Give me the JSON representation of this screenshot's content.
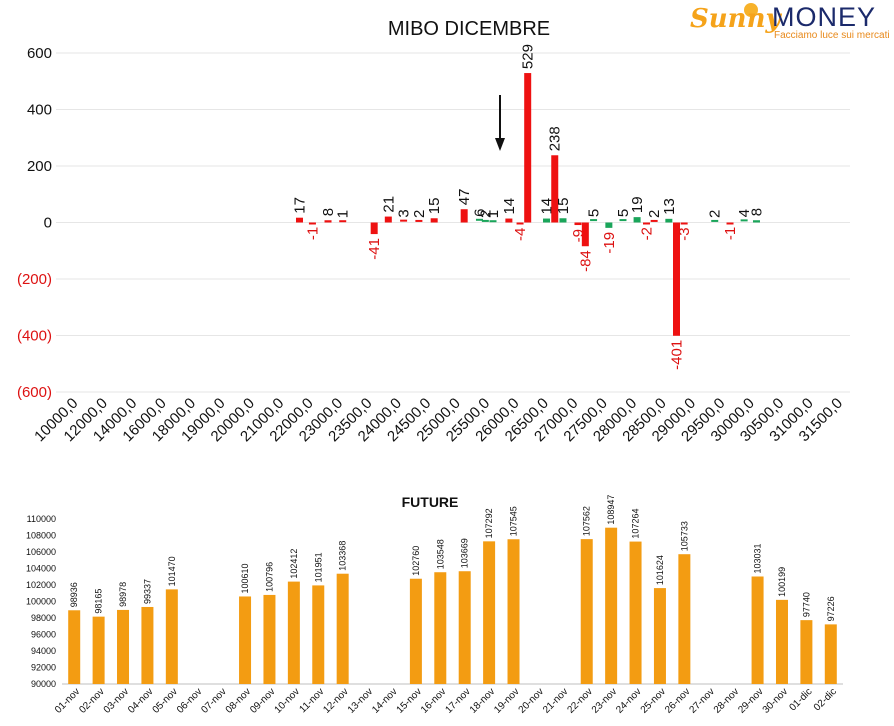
{
  "logo": {
    "brand_left": "Sunny",
    "brand_right": "MONEY",
    "tagline": "Facciamo luce sui mercati"
  },
  "colors": {
    "red": "#ee1111",
    "green": "#1aa55a",
    "orange": "#f39c12",
    "neg_label": "#dd1111"
  },
  "chart_data": [
    {
      "type": "bar",
      "title": "MIBO DICEMBRE",
      "ylim": [
        -600,
        600
      ],
      "y_ticks": [
        "600",
        "400",
        "200",
        "0",
        "(200)",
        "(400)",
        "(600)"
      ],
      "x_tick_labels": [
        "10000,0",
        "12000,0",
        "14000,0",
        "16000,0",
        "18000,0",
        "19000,0",
        "20000,0",
        "21000,0",
        "22000,0",
        "23000,0",
        "23500,0",
        "24000,0",
        "24500,0",
        "25000,0",
        "25500,0",
        "26000,0",
        "26500,0",
        "27000,0",
        "27500,0",
        "28000,0",
        "28500,0",
        "29000,0",
        "29500,0",
        "30000,0",
        "30500,0",
        "31000,0",
        "31500,0"
      ],
      "bars": [
        {
          "x": 8.28,
          "value": 17,
          "color": "red",
          "label": "17"
        },
        {
          "x": 8.72,
          "value": -1,
          "color": "red",
          "label": "-1"
        },
        {
          "x": 9.25,
          "value": 8,
          "color": "red",
          "label": "8"
        },
        {
          "x": 9.75,
          "value": 1,
          "color": "red",
          "label": "1"
        },
        {
          "x": 10.82,
          "value": -41,
          "color": "red",
          "label": "-41"
        },
        {
          "x": 11.3,
          "value": 21,
          "color": "red",
          "label": "21"
        },
        {
          "x": 11.82,
          "value": 3,
          "color": "red",
          "label": "3"
        },
        {
          "x": 12.34,
          "value": 2,
          "color": "red",
          "label": "2"
        },
        {
          "x": 12.86,
          "value": 15,
          "color": "red",
          "label": "15"
        },
        {
          "x": 13.88,
          "value": 47,
          "color": "red",
          "label": "47"
        },
        {
          "x": 14.4,
          "value": 6,
          "color": "green",
          "label": "6"
        },
        {
          "x": 14.6,
          "value": 2,
          "color": "green",
          "label": "2"
        },
        {
          "x": 14.86,
          "value": 1,
          "color": "green",
          "label": "1"
        },
        {
          "x": 15.4,
          "value": 14,
          "color": "red",
          "label": "14"
        },
        {
          "x": 15.78,
          "value": -4,
          "color": "red",
          "label": "-4"
        },
        {
          "x": 16.04,
          "value": 529,
          "color": "red",
          "label": "529"
        },
        {
          "x": 16.68,
          "value": 14,
          "color": "green",
          "label": "14"
        },
        {
          "x": 16.96,
          "value": 238,
          "color": "red",
          "label": "238"
        },
        {
          "x": 17.24,
          "value": 15,
          "color": "green",
          "label": "15"
        },
        {
          "x": 17.75,
          "value": -9,
          "color": "red",
          "label": "-9"
        },
        {
          "x": 18.0,
          "value": -84,
          "color": "red",
          "label": "-84"
        },
        {
          "x": 18.28,
          "value": 5,
          "color": "green",
          "label": "5"
        },
        {
          "x": 18.8,
          "value": -19,
          "color": "green",
          "label": "-19"
        },
        {
          "x": 19.28,
          "value": 5,
          "color": "green",
          "label": "5"
        },
        {
          "x": 19.76,
          "value": 19,
          "color": "green",
          "label": "19"
        },
        {
          "x": 20.08,
          "value": -2,
          "color": "red",
          "label": "-2"
        },
        {
          "x": 20.34,
          "value": 2,
          "color": "red",
          "label": "2"
        },
        {
          "x": 20.84,
          "value": 13,
          "color": "green",
          "label": "13"
        },
        {
          "x": 21.1,
          "value": -401,
          "color": "red",
          "label": "-401"
        },
        {
          "x": 21.36,
          "value": -3,
          "color": "red",
          "label": "-3"
        },
        {
          "x": 22.4,
          "value": 2,
          "color": "green",
          "label": "2"
        },
        {
          "x": 22.92,
          "value": -1,
          "color": "red",
          "label": "-1"
        },
        {
          "x": 23.4,
          "value": 4,
          "color": "green",
          "label": "4"
        },
        {
          "x": 23.82,
          "value": 8,
          "color": "green",
          "label": "8"
        }
      ],
      "annotation": "down-arrow",
      "grid": true
    },
    {
      "type": "bar",
      "title": "FUTURE",
      "ylim": [
        90000,
        110000
      ],
      "y_ticks": [
        "110000",
        "108000",
        "106000",
        "104000",
        "102000",
        "100000",
        "98000",
        "96000",
        "94000",
        "92000",
        "90000"
      ],
      "categories": [
        "01-nov",
        "02-nov",
        "03-nov",
        "04-nov",
        "05-nov",
        "06-nov",
        "07-nov",
        "08-nov",
        "09-nov",
        "10-nov",
        "11-nov",
        "12-nov",
        "13-nov",
        "14-nov",
        "15-nov",
        "16-nov",
        "17-nov",
        "18-nov",
        "19-nov",
        "20-nov",
        "21-nov",
        "22-nov",
        "23-nov",
        "24-nov",
        "25-nov",
        "26-nov",
        "27-nov",
        "28-nov",
        "29-nov",
        "30-nov",
        "01-dic",
        "02-dic"
      ],
      "values": [
        98936,
        98165,
        98978,
        99337,
        101470,
        null,
        null,
        100610,
        100796,
        102412,
        101951,
        103368,
        null,
        null,
        102760,
        103548,
        103669,
        107292,
        107545,
        null,
        null,
        107562,
        108947,
        107264,
        101624,
        105733,
        null,
        null,
        103031,
        100199,
        97740,
        97226
      ],
      "labels": [
        "98936",
        "98165",
        "98978",
        "99337",
        "101470",
        "",
        "",
        "100610",
        "100796",
        "102412",
        "101951",
        "103368",
        "",
        "",
        "102760",
        "103548",
        "103669",
        "107292",
        "107545",
        "",
        "",
        "107562",
        "108947",
        "107264",
        "101624",
        "105733",
        "",
        "",
        "103031",
        "100199",
        "97740",
        "97226"
      ],
      "color": "orange",
      "grid": false
    }
  ]
}
